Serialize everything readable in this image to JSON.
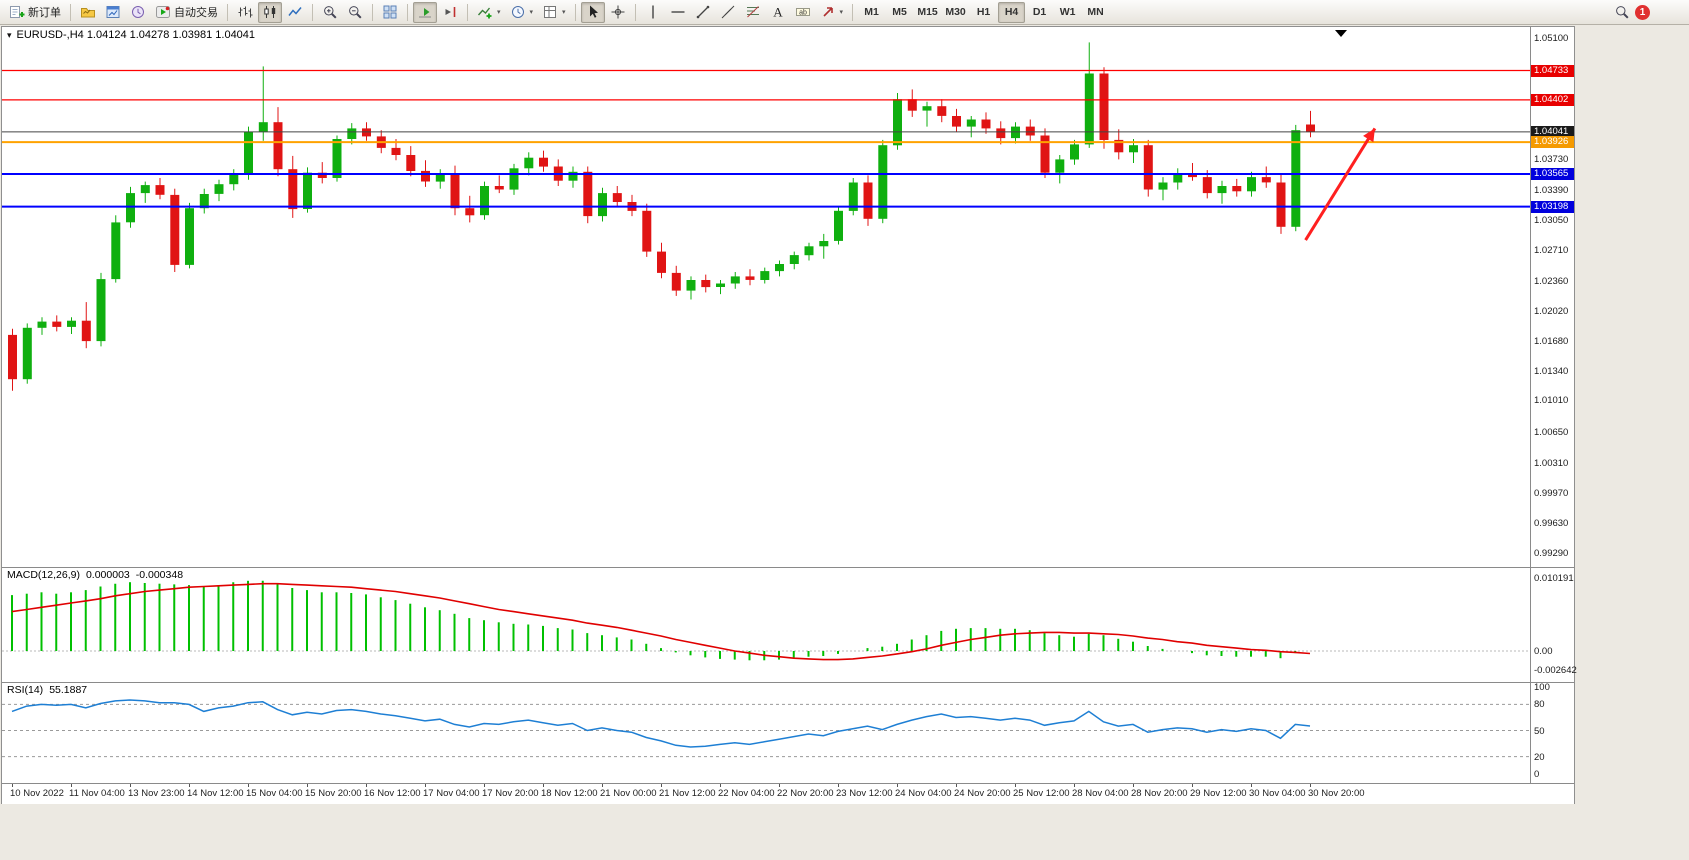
{
  "window": {
    "badge_count": "1"
  },
  "toolbar": {
    "new_order_label": "新订单",
    "auto_trading_label": "自动交易",
    "timeframes": [
      "M1",
      "M5",
      "M15",
      "M30",
      "H1",
      "H4",
      "D1",
      "W1",
      "MN"
    ],
    "active_timeframe": "H4"
  },
  "chart": {
    "title": "EURUSD-,H4 1.04124 1.04278 1.03981 1.04041",
    "symbol": "EURUSD-",
    "timeframe": "H4",
    "ohlc": {
      "open": "1.04124",
      "high": "1.04278",
      "low": "1.03981",
      "close": "1.04041"
    },
    "price_axis_ticks": [
      "1.05100",
      "1.03730",
      "1.03390",
      "1.03050",
      "1.02710",
      "1.02360",
      "1.02020",
      "1.01680",
      "1.01340",
      "1.01010",
      "1.00650",
      "1.00310",
      "0.99970",
      "0.99630",
      "0.99290"
    ],
    "price_tags": [
      {
        "label": "1.04733",
        "color": "#e80000"
      },
      {
        "label": "1.04402",
        "color": "#e80000"
      },
      {
        "label": "1.04041",
        "color": "#1a1a1a"
      },
      {
        "label": "1.03926",
        "color": "#f59a00"
      },
      {
        "label": "1.03565",
        "color": "#0000dd"
      },
      {
        "label": "1.03198",
        "color": "#0000dd"
      }
    ],
    "hlines": [
      {
        "price": 1.04733,
        "color": "#ff0000",
        "width": 1.2
      },
      {
        "price": 1.04402,
        "color": "#ff0000",
        "width": 1.2
      },
      {
        "price": 1.04041,
        "color": "#444444",
        "width": 1
      },
      {
        "price": 1.03926,
        "color": "#ffa200",
        "width": 2
      },
      {
        "price": 1.03565,
        "color": "#0000ff",
        "width": 2
      },
      {
        "price": 1.03198,
        "color": "#0000ff",
        "width": 2
      }
    ],
    "arrow": {
      "color": "#ff2020",
      "from": {
        "index": 87.7,
        "price": 1.0282
      },
      "to": {
        "index": 92.4,
        "price": 1.0408
      }
    },
    "time_labels": [
      "10 Nov 2022",
      "11 Nov 04:00",
      "13 Nov 23:00",
      "14 Nov 12:00",
      "15 Nov 04:00",
      "15 Nov 20:00",
      "16 Nov 12:00",
      "17 Nov 04:00",
      "17 Nov 20:00",
      "18 Nov 12:00",
      "21 Nov 00:00",
      "21 Nov 12:00",
      "22 Nov 04:00",
      "22 Nov 20:00",
      "23 Nov 12:00",
      "24 Nov 04:00",
      "24 Nov 20:00",
      "25 Nov 12:00",
      "28 Nov 04:00",
      "28 Nov 20:00",
      "29 Nov 12:00",
      "30 Nov 04:00",
      "30 Nov 20:00"
    ]
  },
  "macd": {
    "label": "MACD(12,26,9)",
    "value_main": "0.000003",
    "value_signal": "-0.000348",
    "axis": [
      "0.010191",
      "0.00",
      "-0.002642"
    ]
  },
  "rsi": {
    "label": "RSI(14)",
    "value": "55.1887",
    "axis": [
      "100",
      "80",
      "50",
      "20",
      "0"
    ],
    "levels": [
      80,
      50,
      20
    ]
  },
  "chart_data": {
    "type": "candlestick",
    "symbol": "EURUSD-",
    "timeframe": "H4",
    "ylim": [
      0.9929,
      1.051
    ],
    "colors": {
      "bull": "#0faf0f",
      "bear": "#e01414",
      "macd_histogram": "#00c000",
      "macd_signal": "#e00000",
      "rsi": "#1e7fd4"
    },
    "candles": [
      [
        1.0175,
        1.0182,
        1.0112,
        1.0125
      ],
      [
        1.0125,
        1.0188,
        1.012,
        1.0183
      ],
      [
        1.0183,
        1.0195,
        1.0175,
        1.019
      ],
      [
        1.019,
        1.0197,
        1.0179,
        1.0184
      ],
      [
        1.0184,
        1.0195,
        1.0176,
        1.0191
      ],
      [
        1.0191,
        1.0212,
        1.016,
        1.0168
      ],
      [
        1.0168,
        1.0245,
        1.0162,
        1.0238
      ],
      [
        1.0238,
        1.031,
        1.0234,
        1.0302
      ],
      [
        1.0302,
        1.0342,
        1.0296,
        1.0335
      ],
      [
        1.0335,
        1.0348,
        1.0324,
        1.0344
      ],
      [
        1.0344,
        1.0352,
        1.0328,
        1.0333
      ],
      [
        1.0333,
        1.034,
        1.0246,
        1.0254
      ],
      [
        1.0254,
        1.0324,
        1.025,
        1.0318
      ],
      [
        1.0318,
        1.034,
        1.0312,
        1.0334
      ],
      [
        1.0334,
        1.035,
        1.0326,
        1.0345
      ],
      [
        1.0345,
        1.0362,
        1.0338,
        1.0356
      ],
      [
        1.0356,
        1.041,
        1.035,
        1.0404
      ],
      [
        1.0404,
        1.0478,
        1.0394,
        1.0415
      ],
      [
        1.0415,
        1.0432,
        1.0354,
        1.0362
      ],
      [
        1.0362,
        1.0377,
        1.0307,
        1.0317
      ],
      [
        1.0317,
        1.0364,
        1.0313,
        1.0358
      ],
      [
        1.0358,
        1.037,
        1.0346,
        1.0352
      ],
      [
        1.0352,
        1.04,
        1.0348,
        1.0396
      ],
      [
        1.0396,
        1.0414,
        1.039,
        1.0408
      ],
      [
        1.0408,
        1.0415,
        1.0394,
        1.0399
      ],
      [
        1.0399,
        1.0406,
        1.038,
        1.0386
      ],
      [
        1.0386,
        1.0396,
        1.0372,
        1.0378
      ],
      [
        1.0378,
        1.0388,
        1.0354,
        1.036
      ],
      [
        1.036,
        1.0372,
        1.0342,
        1.0348
      ],
      [
        1.0348,
        1.0362,
        1.034,
        1.0356
      ],
      [
        1.0356,
        1.0366,
        1.031,
        1.0318
      ],
      [
        1.0318,
        1.0332,
        1.0302,
        1.031
      ],
      [
        1.031,
        1.0348,
        1.0305,
        1.0343
      ],
      [
        1.0343,
        1.0355,
        1.0335,
        1.0339
      ],
      [
        1.0339,
        1.0368,
        1.0333,
        1.0363
      ],
      [
        1.0363,
        1.0381,
        1.0355,
        1.0375
      ],
      [
        1.0375,
        1.0383,
        1.0359,
        1.0365
      ],
      [
        1.0365,
        1.0373,
        1.0343,
        1.0349
      ],
      [
        1.0349,
        1.0365,
        1.0341,
        1.0359
      ],
      [
        1.0359,
        1.0365,
        1.0301,
        1.0309
      ],
      [
        1.0309,
        1.0341,
        1.0303,
        1.0335
      ],
      [
        1.0335,
        1.0343,
        1.0319,
        1.0325
      ],
      [
        1.0325,
        1.0333,
        1.0309,
        1.0315
      ],
      [
        1.0315,
        1.0323,
        1.0263,
        1.0269
      ],
      [
        1.0269,
        1.0279,
        1.0239,
        1.0245
      ],
      [
        1.0245,
        1.0253,
        1.0219,
        1.0225
      ],
      [
        1.0225,
        1.0241,
        1.0215,
        1.0237
      ],
      [
        1.0237,
        1.0243,
        1.0223,
        1.0229
      ],
      [
        1.0229,
        1.0237,
        1.0221,
        1.0233
      ],
      [
        1.0233,
        1.0246,
        1.0227,
        1.0241
      ],
      [
        1.0241,
        1.0249,
        1.0231,
        1.0237
      ],
      [
        1.0237,
        1.0251,
        1.0233,
        1.0247
      ],
      [
        1.0247,
        1.0259,
        1.0241,
        1.0255
      ],
      [
        1.0255,
        1.0269,
        1.0249,
        1.0265
      ],
      [
        1.0265,
        1.0279,
        1.0259,
        1.0275
      ],
      [
        1.0275,
        1.0289,
        1.0261,
        1.0281
      ],
      [
        1.0281,
        1.032,
        1.0277,
        1.0315
      ],
      [
        1.0315,
        1.0352,
        1.031,
        1.0347
      ],
      [
        1.0347,
        1.0355,
        1.0298,
        1.0306
      ],
      [
        1.0306,
        1.0395,
        1.0301,
        1.0389
      ],
      [
        1.0389,
        1.0448,
        1.0384,
        1.0441
      ],
      [
        1.0441,
        1.0452,
        1.0421,
        1.0428
      ],
      [
        1.0428,
        1.0438,
        1.041,
        1.0433
      ],
      [
        1.0433,
        1.0441,
        1.0415,
        1.0422
      ],
      [
        1.0422,
        1.043,
        1.0404,
        1.041
      ],
      [
        1.041,
        1.0422,
        1.0398,
        1.0418
      ],
      [
        1.0418,
        1.0426,
        1.0402,
        1.0408
      ],
      [
        1.0408,
        1.0416,
        1.039,
        1.0397
      ],
      [
        1.0397,
        1.0415,
        1.0391,
        1.041
      ],
      [
        1.041,
        1.0418,
        1.0394,
        1.04
      ],
      [
        1.04,
        1.0408,
        1.0352,
        1.0358
      ],
      [
        1.0358,
        1.0378,
        1.0346,
        1.0373
      ],
      [
        1.0373,
        1.0395,
        1.0367,
        1.039
      ],
      [
        1.039,
        1.0505,
        1.0386,
        1.047
      ],
      [
        1.047,
        1.0477,
        1.0385,
        1.0395
      ],
      [
        1.0395,
        1.0407,
        1.0373,
        1.0381
      ],
      [
        1.0381,
        1.0396,
        1.0369,
        1.0389
      ],
      [
        1.0389,
        1.0395,
        1.0331,
        1.0339
      ],
      [
        1.0339,
        1.0353,
        1.0327,
        1.0347
      ],
      [
        1.0347,
        1.0363,
        1.0339,
        1.0357
      ],
      [
        1.0357,
        1.0369,
        1.0349,
        1.0353
      ],
      [
        1.0353,
        1.0361,
        1.0329,
        1.0335
      ],
      [
        1.0335,
        1.0349,
        1.0323,
        1.0343
      ],
      [
        1.0343,
        1.0351,
        1.0331,
        1.0337
      ],
      [
        1.0337,
        1.0359,
        1.0331,
        1.0353
      ],
      [
        1.0353,
        1.0365,
        1.0341,
        1.0347
      ],
      [
        1.0347,
        1.0357,
        1.0289,
        1.0297
      ],
      [
        1.0297,
        1.0412,
        1.0292,
        1.0406
      ],
      [
        1.04124,
        1.04278,
        1.03981,
        1.04041
      ]
    ],
    "macd_histogram": [
      0.0078,
      0.008,
      0.0082,
      0.008,
      0.0082,
      0.0085,
      0.009,
      0.0094,
      0.0096,
      0.0095,
      0.0094,
      0.0093,
      0.0092,
      0.009,
      0.0092,
      0.0096,
      0.0098,
      0.0098,
      0.0094,
      0.0088,
      0.0085,
      0.0082,
      0.0082,
      0.0081,
      0.0079,
      0.0075,
      0.0071,
      0.0066,
      0.0061,
      0.0057,
      0.0052,
      0.0046,
      0.0043,
      0.004,
      0.0038,
      0.0037,
      0.0035,
      0.0032,
      0.003,
      0.0025,
      0.0022,
      0.0019,
      0.0016,
      0.001,
      0.0004,
      -0.0002,
      -0.0006,
      -0.0009,
      -0.0011,
      -0.0012,
      -0.0013,
      -0.0013,
      -0.0012,
      -0.001,
      -0.0008,
      -0.0007,
      -0.0004,
      0.0,
      0.0004,
      0.0006,
      0.001,
      0.0016,
      0.0022,
      0.0028,
      0.0031,
      0.0032,
      0.0032,
      0.0031,
      0.0031,
      0.0029,
      0.0025,
      0.0022,
      0.002,
      0.0024,
      0.0022,
      0.0017,
      0.0013,
      0.0007,
      0.0003,
      0.0,
      -0.0003,
      -0.0006,
      -0.0007,
      -0.0008,
      -0.0008,
      -0.0008,
      -0.001,
      -0.0003,
      3e-06
    ],
    "macd_signal": [
      0.0055,
      0.0058,
      0.0061,
      0.0064,
      0.0067,
      0.007,
      0.0073,
      0.0077,
      0.008,
      0.0083,
      0.0085,
      0.0087,
      0.0089,
      0.009,
      0.0091,
      0.0092,
      0.0093,
      0.0094,
      0.0094,
      0.0093,
      0.0092,
      0.0091,
      0.009,
      0.0089,
      0.0087,
      0.0085,
      0.0083,
      0.008,
      0.0077,
      0.0074,
      0.007,
      0.0066,
      0.0062,
      0.0058,
      0.0055,
      0.0052,
      0.0049,
      0.0046,
      0.0043,
      0.0039,
      0.0036,
      0.0033,
      0.0029,
      0.0025,
      0.0021,
      0.0016,
      0.0012,
      0.0008,
      0.0004,
      0.0,
      -0.0003,
      -0.0006,
      -0.0008,
      -0.001,
      -0.0011,
      -0.0012,
      -0.0012,
      -0.0011,
      -0.0009,
      -0.0007,
      -0.0004,
      -0.0001,
      0.0003,
      0.0008,
      0.0012,
      0.0016,
      0.0019,
      0.0022,
      0.0024,
      0.0025,
      0.0026,
      0.0026,
      0.0025,
      0.0025,
      0.0024,
      0.0023,
      0.0021,
      0.0018,
      0.0016,
      0.0013,
      0.0011,
      0.0008,
      0.0006,
      0.0004,
      0.0002,
      0.0001,
      -0.0001,
      -0.0002,
      -0.000348
    ],
    "rsi": [
      72,
      78,
      80,
      79,
      80,
      76,
      81,
      84,
      85,
      84,
      82,
      82,
      80,
      72,
      76,
      78,
      82,
      83,
      74,
      68,
      71,
      69,
      73,
      74,
      72,
      69,
      67,
      64,
      61,
      63,
      57,
      54,
      58,
      57,
      60,
      62,
      59,
      56,
      58,
      50,
      53,
      50,
      48,
      42,
      38,
      33,
      31,
      32,
      34,
      36,
      34,
      37,
      40,
      43,
      46,
      44,
      49,
      52,
      55,
      51,
      57,
      62,
      66,
      69,
      65,
      66,
      64,
      62,
      64,
      62,
      56,
      59,
      61,
      72,
      60,
      55,
      57,
      48,
      51,
      53,
      52,
      48,
      51,
      49,
      52,
      50,
      41,
      57,
      55.19
    ]
  }
}
